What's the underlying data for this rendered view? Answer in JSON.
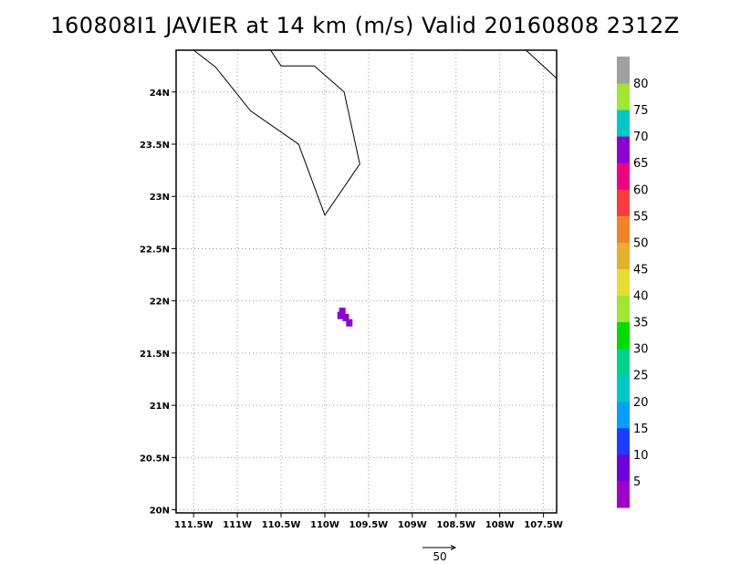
{
  "chart_data": {
    "type": "heatmap",
    "title": "160808I1 JAVIER at 14 km (m/s) Valid 20160808 2312Z",
    "xlim": [
      -111.7,
      -107.35
    ],
    "ylim": [
      19.97,
      24.4
    ],
    "x_ticks": [
      {
        "value": -111.5,
        "label": "111.5W"
      },
      {
        "value": -111.0,
        "label": "111W"
      },
      {
        "value": -110.5,
        "label": "110.5W"
      },
      {
        "value": -110.0,
        "label": "110W"
      },
      {
        "value": -109.5,
        "label": "109.5W"
      },
      {
        "value": -109.0,
        "label": "109W"
      },
      {
        "value": -108.5,
        "label": "108.5W"
      },
      {
        "value": -108.0,
        "label": "108W"
      },
      {
        "value": -107.5,
        "label": "107.5W"
      }
    ],
    "y_ticks": [
      {
        "value": 20.0,
        "label": "20N"
      },
      {
        "value": 20.5,
        "label": "20.5N"
      },
      {
        "value": 21.0,
        "label": "21N"
      },
      {
        "value": 21.5,
        "label": "21.5N"
      },
      {
        "value": 22.0,
        "label": "22N"
      },
      {
        "value": 22.5,
        "label": "22.5N"
      },
      {
        "value": 23.0,
        "label": "23N"
      },
      {
        "value": 23.5,
        "label": "23.5N"
      },
      {
        "value": 24.0,
        "label": "24N"
      }
    ],
    "grid": true,
    "coastlines": [
      [
        [
          -111.5,
          24.4
        ],
        [
          -111.25,
          24.24
        ],
        [
          -110.85,
          23.82
        ],
        [
          -110.3,
          23.5
        ],
        [
          -110.0,
          22.82
        ],
        [
          -109.6,
          23.31
        ],
        [
          -109.78,
          24.0
        ],
        [
          -110.12,
          24.25
        ],
        [
          -110.5,
          24.25
        ],
        [
          -110.62,
          24.4
        ]
      ],
      [
        [
          -107.7,
          24.4
        ],
        [
          -107.35,
          24.13
        ]
      ]
    ],
    "cells": [
      {
        "lon": -109.82,
        "lat": 21.86,
        "value": 65
      },
      {
        "lon": -109.8,
        "lat": 21.9,
        "value": 65
      },
      {
        "lon": -109.76,
        "lat": 21.84,
        "value": 65
      },
      {
        "lon": -109.72,
        "lat": 21.79,
        "value": 65
      }
    ],
    "colorbar": {
      "levels": [
        "5",
        "10",
        "15",
        "20",
        "25",
        "30",
        "35",
        "40",
        "45",
        "50",
        "55",
        "60",
        "65",
        "70",
        "75",
        "80"
      ],
      "colors": [
        "#a000c8",
        "#6e00dc",
        "#1e3cff",
        "#00a0ff",
        "#00c8c8",
        "#00d28c",
        "#00dc00",
        "#a0e632",
        "#e6dc32",
        "#e6af2d",
        "#f08228",
        "#fa3c3c",
        "#f00082",
        "#8c00d2",
        "#00c8c8",
        "#a0e632",
        "#a0a0a0"
      ]
    },
    "reference_vector": {
      "label": "50"
    }
  }
}
